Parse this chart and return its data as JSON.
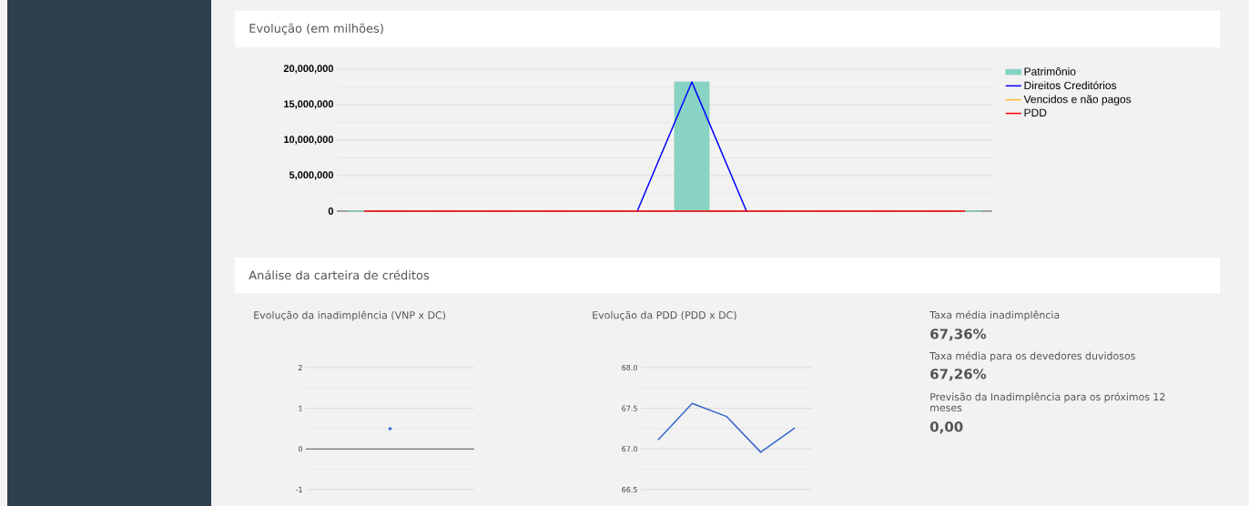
{
  "chart_data": [
    {
      "type": "bar",
      "title": "Evolução (em milhões)",
      "categories": [
        null,
        null,
        null,
        null,
        null,
        null,
        null,
        null,
        null,
        null,
        null,
        null
      ],
      "series": [
        {
          "name": "Patrimônio",
          "type": "bar",
          "color": "#88d3c3",
          "values": [
            0,
            0,
            0,
            0,
            0,
            0,
            18200000,
            0,
            0,
            0,
            0,
            0
          ]
        },
        {
          "name": "Direitos Creditórios",
          "type": "line",
          "color": "#0000ff",
          "values": [
            null,
            null,
            null,
            null,
            null,
            0,
            18200000,
            0,
            null,
            null,
            null,
            null
          ]
        },
        {
          "name": "Vencidos e não pagos",
          "type": "line",
          "color": "#ffb733",
          "values": [
            null,
            null,
            null,
            null,
            null,
            null,
            null,
            null,
            null,
            null,
            null,
            null
          ]
        },
        {
          "name": "PDD",
          "type": "line",
          "color": "#ff0000",
          "values": [
            0,
            0,
            0,
            0,
            0,
            0,
            0,
            0,
            0,
            0,
            0,
            0
          ]
        }
      ],
      "ylim": [
        0,
        20000000
      ],
      "yticks": [
        {
          "value": 0,
          "label": "0"
        },
        {
          "value": 5000000,
          "label": "5,000,000"
        },
        {
          "value": 10000000,
          "label": "10,000,000"
        },
        {
          "value": 15000000,
          "label": "15,000,000"
        },
        {
          "value": 20000000,
          "label": "20,000,000"
        }
      ],
      "grid": "y",
      "legend": "right",
      "marker": "none"
    },
    {
      "type": "scatter",
      "title": "Análise da carteira de créditos",
      "subtitle": "Evolução da inadimplência (VNP x DC)",
      "categories": [
        null
      ],
      "series": [
        {
          "color": "#3366cc",
          "values": [
            0.5
          ]
        }
      ],
      "ylim": [
        -1,
        2
      ],
      "yticks": [
        -1,
        0,
        1,
        2
      ],
      "grid": "y",
      "legend": false,
      "marker": "circle"
    },
    {
      "type": "line",
      "title": "Evolução da PDD (PDD x DC)",
      "categories": [
        null,
        null,
        null,
        null,
        null
      ],
      "series": [
        {
          "color": "#3366cc",
          "values": [
            67.11,
            67.56,
            67.4,
            66.96,
            67.26
          ]
        }
      ],
      "ylim": [
        66.5,
        68.0
      ],
      "yticks": [
        {
          "value": 66.5,
          "label": "66.5"
        },
        {
          "value": 67.0,
          "label": "67.0"
        },
        {
          "value": 67.5,
          "label": "67.5"
        },
        {
          "value": 68.0,
          "label": "68.0"
        }
      ],
      "grid": "y",
      "legend": false,
      "marker": "none"
    },
    {
      "type": "other",
      "annotations": [
        "Taxa média inadimplência",
        "67,36%",
        "Taxa média para os devedores duvidosos",
        "67,26%",
        "Previsão da Inadimplência para os próximos 12 meses",
        "0,00"
      ]
    }
  ]
}
